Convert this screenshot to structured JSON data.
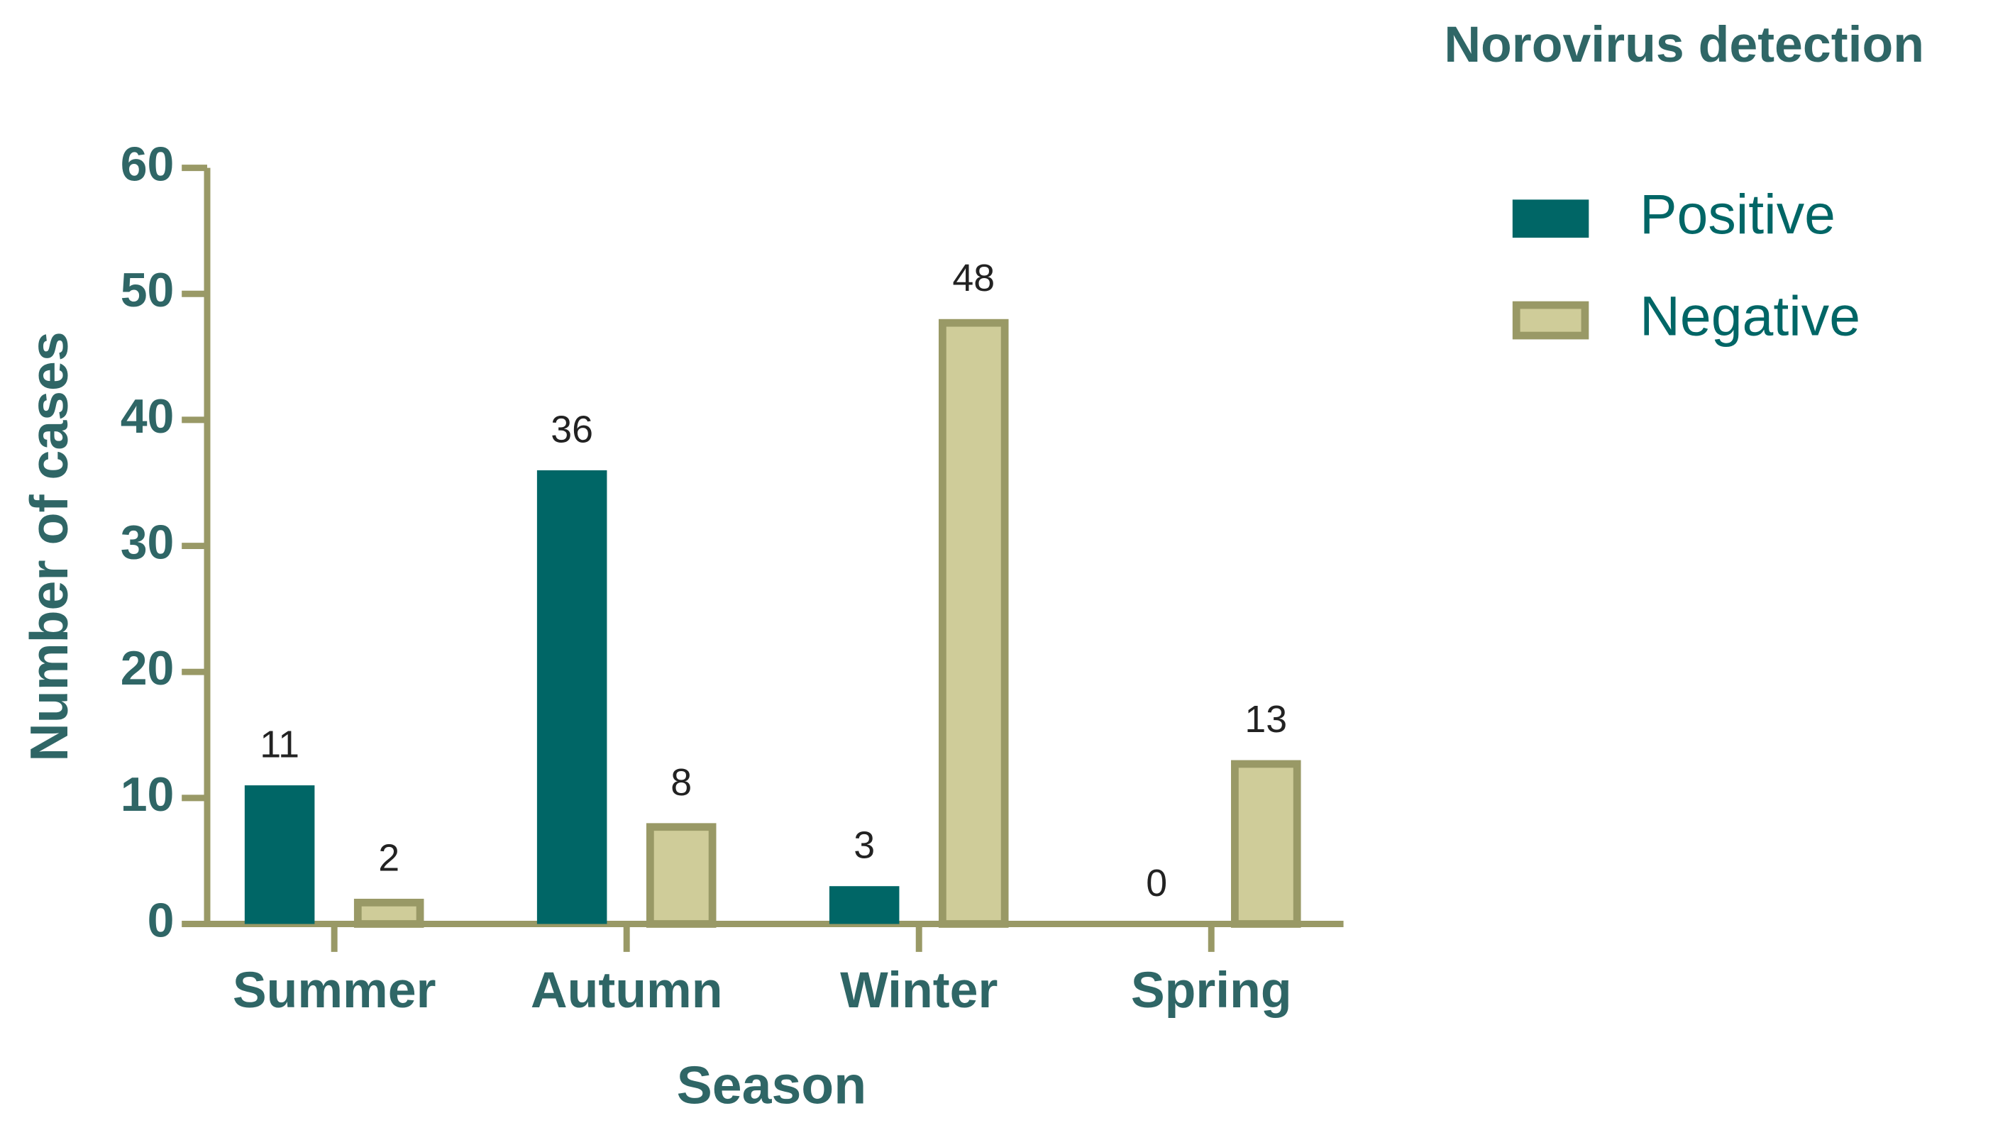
{
  "chart_data": {
    "type": "bar",
    "title": "Norovirus detection",
    "x_label": "Season",
    "y_label": "Number of cases",
    "categories": [
      "Summer",
      "Autumn",
      "Winter",
      "Spring"
    ],
    "series": [
      {
        "name": "Positive",
        "color": "#006666",
        "values": [
          11,
          36,
          3,
          0
        ]
      },
      {
        "name": "Negative",
        "color": "#cfcc99",
        "values": [
          2,
          8,
          48,
          13
        ]
      }
    ],
    "ylim": [
      0,
      60
    ],
    "yticks": [
      0,
      10,
      20,
      30,
      40,
      50,
      60
    ],
    "grid": false,
    "legend": "right"
  }
}
